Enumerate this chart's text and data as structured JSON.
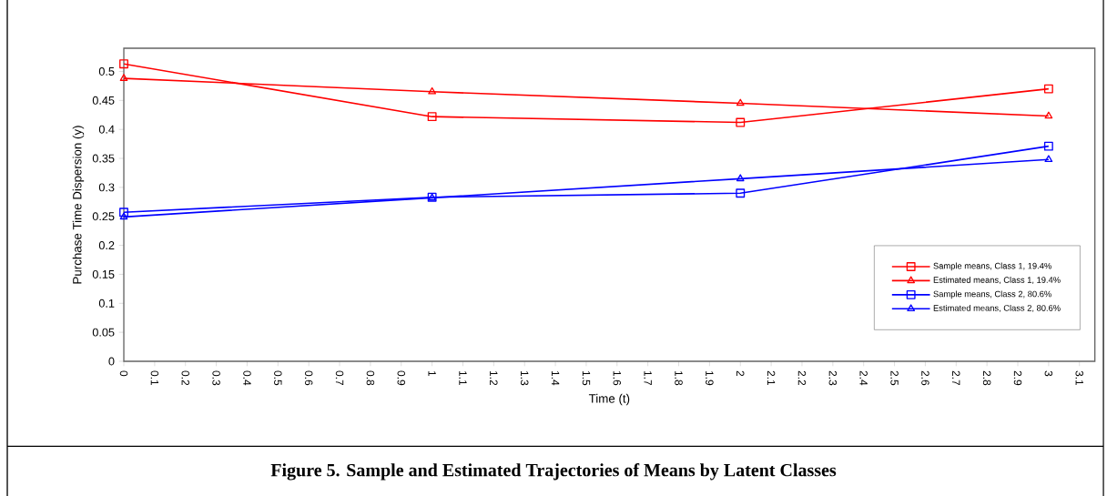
{
  "chart_data": {
    "type": "line",
    "title": "Figure 5. Sample and Estimated Trajectories of Means by Latent Classes",
    "xlabel": "Time (t)",
    "ylabel": "Purchase Time Dispersion (y)",
    "x": [
      0,
      1,
      2,
      3
    ],
    "series": [
      {
        "name": "Sample means, Class 1, 19.4%",
        "color": "#ff0000",
        "marker": "square",
        "values": [
          0.513,
          0.422,
          0.412,
          0.47
        ]
      },
      {
        "name": "Estimated means, Class 1, 19.4%",
        "color": "#ff0000",
        "marker": "triangle",
        "values": [
          0.488,
          0.465,
          0.445,
          0.423
        ]
      },
      {
        "name": "Sample means, Class 2, 80.6%",
        "color": "#0000ff",
        "marker": "square",
        "values": [
          0.257,
          0.283,
          0.29,
          0.371
        ]
      },
      {
        "name": "Estimated means, Class 2, 80.6%",
        "color": "#0000ff",
        "marker": "triangle",
        "values": [
          0.249,
          0.282,
          0.315,
          0.348
        ]
      }
    ],
    "xlim": [
      0,
      3.15
    ],
    "ylim": [
      0,
      0.54
    ],
    "xticks": [
      0,
      0.1,
      0.2,
      0.3,
      0.4,
      0.5,
      0.6,
      0.7,
      0.8,
      0.9,
      1,
      1.1,
      1.2,
      1.3,
      1.4,
      1.5,
      1.6,
      1.7,
      1.8,
      1.9,
      2,
      2.1,
      2.2,
      2.3,
      2.4,
      2.5,
      2.6,
      2.7,
      2.8,
      2.9,
      3,
      3.1
    ],
    "yticks": [
      0,
      0.05,
      0.1,
      0.15,
      0.2,
      0.25,
      0.3,
      0.35,
      0.4,
      0.45,
      0.5
    ],
    "grid": false,
    "legend": "bottom right",
    "line_style": "solid"
  }
}
